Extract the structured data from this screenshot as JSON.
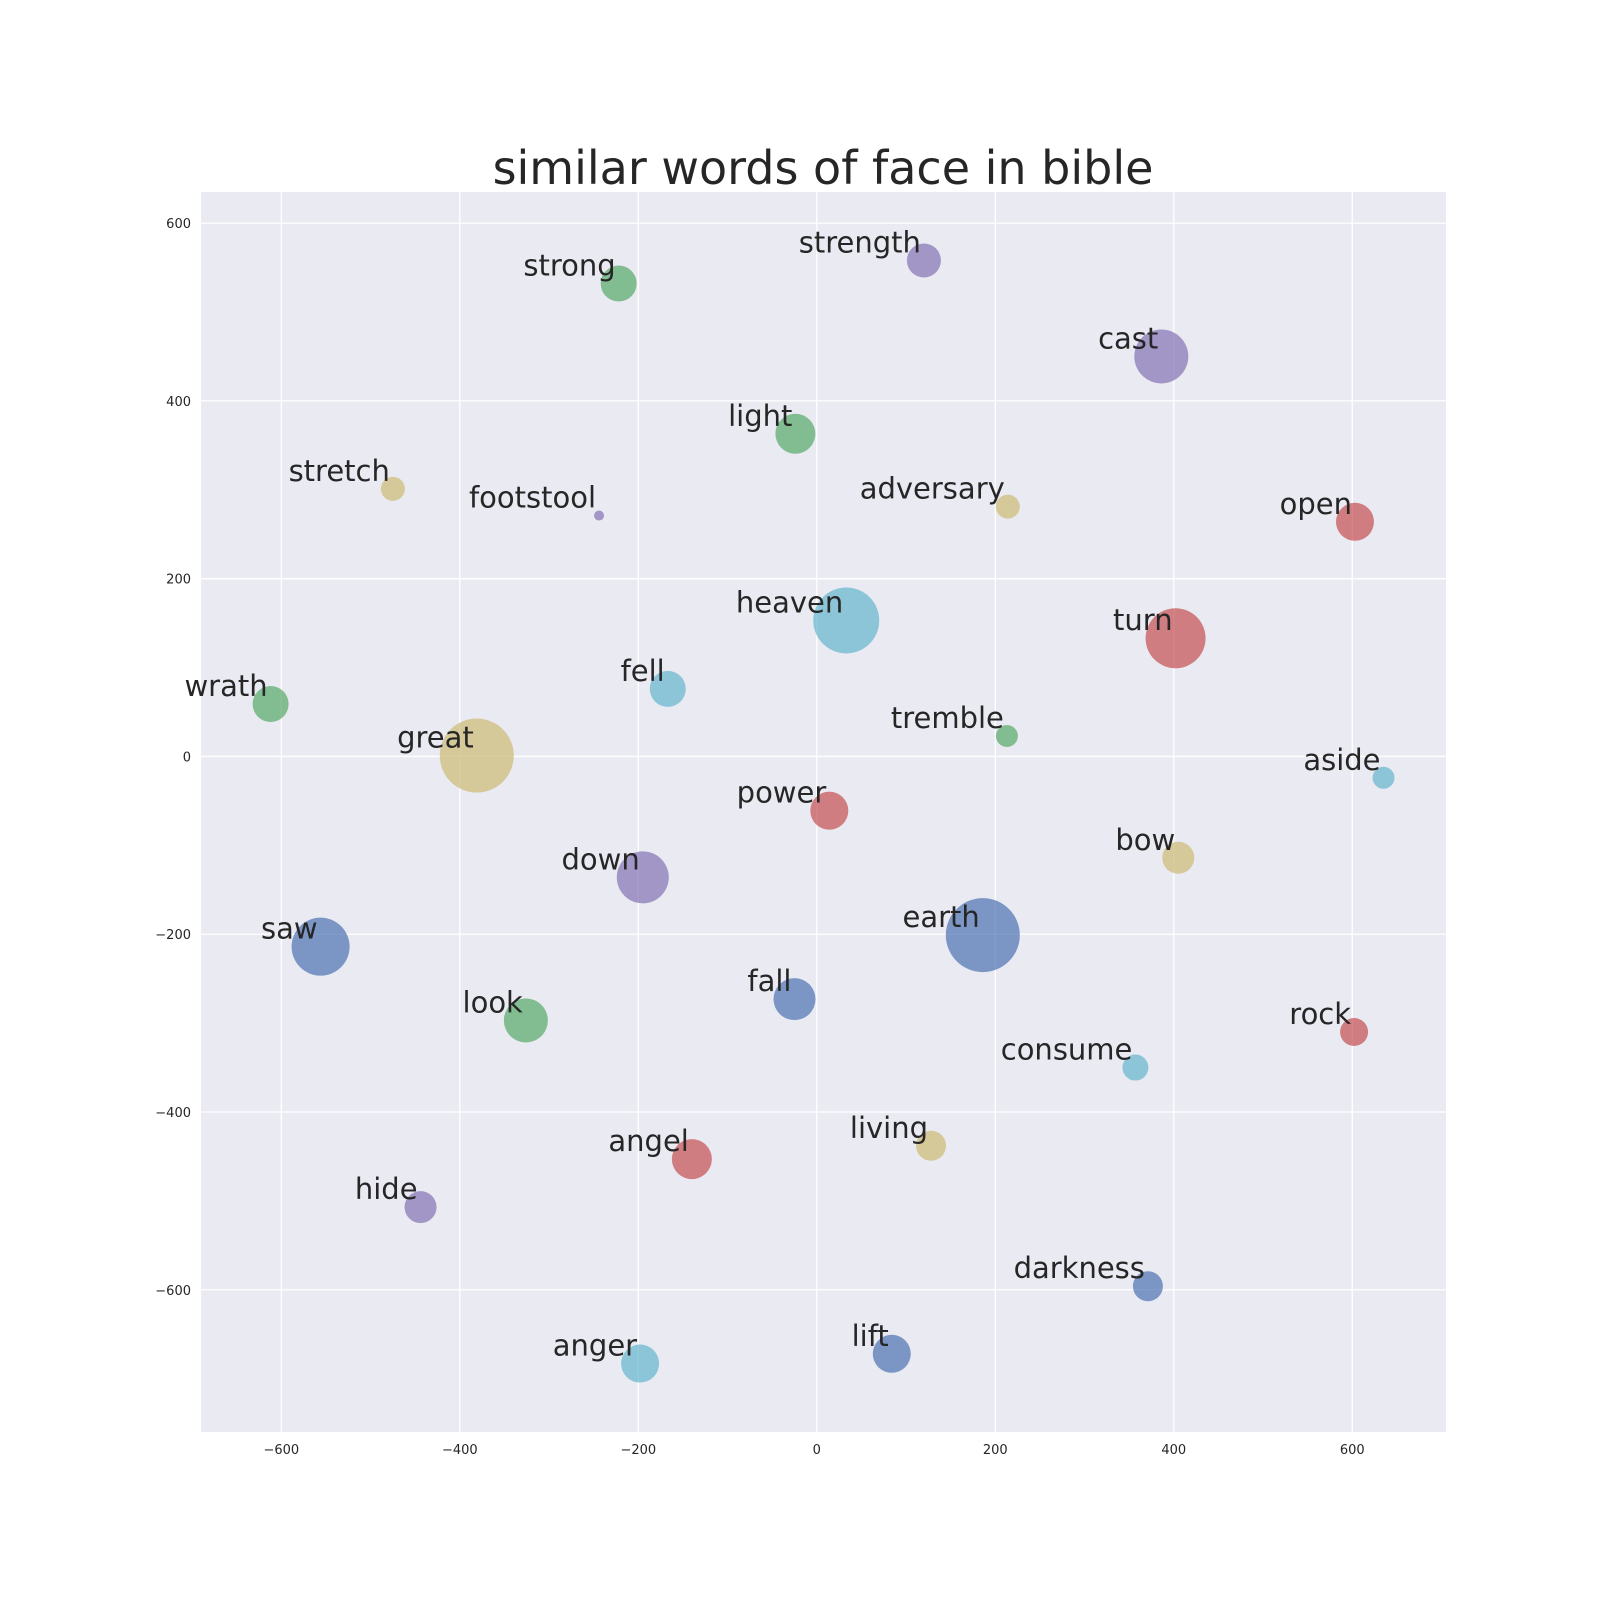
{
  "chart_data": {
    "type": "scatter",
    "title": "similar words of face in bible",
    "xlabel": "",
    "ylabel": "",
    "xlim": [
      -690,
      705
    ],
    "ylim": [
      -760,
      635
    ],
    "xticks": [
      -600,
      -400,
      -200,
      0,
      200,
      400,
      600
    ],
    "yticks": [
      600,
      400,
      200,
      0,
      -200,
      -400,
      -600
    ],
    "xtick_labels": [
      "−600",
      "−400",
      "−200",
      "0",
      "200",
      "400",
      "600"
    ],
    "ytick_labels": [
      "600",
      "400",
      "200",
      "0",
      "−200",
      "−400",
      "−600"
    ],
    "grid": true,
    "colors": {
      "blue": "#4C72B0",
      "green": "#55A868",
      "red": "#C44E52",
      "purple": "#8172B2",
      "yellow": "#CCB974",
      "cyan": "#64B5CD",
      "plot_background": "#EAEAF2",
      "grid": "#ffffff"
    },
    "points": [
      {
        "label": "strength",
        "x": 120,
        "y": 558,
        "size": 17,
        "color": "purple"
      },
      {
        "label": "strong",
        "x": -222,
        "y": 532,
        "size": 18,
        "color": "green"
      },
      {
        "label": "cast",
        "x": 386,
        "y": 450,
        "size": 27,
        "color": "purple"
      },
      {
        "label": "light",
        "x": -24,
        "y": 363,
        "size": 20,
        "color": "green"
      },
      {
        "label": "stretch",
        "x": -475,
        "y": 301,
        "size": 12,
        "color": "yellow"
      },
      {
        "label": "footstool",
        "x": -244,
        "y": 271,
        "size": 5,
        "color": "purple"
      },
      {
        "label": "adversary",
        "x": 214,
        "y": 281,
        "size": 12,
        "color": "yellow"
      },
      {
        "label": "open",
        "x": 603,
        "y": 264,
        "size": 19,
        "color": "red"
      },
      {
        "label": "heaven",
        "x": 33,
        "y": 153,
        "size": 33,
        "color": "cyan"
      },
      {
        "label": "turn",
        "x": 402,
        "y": 133,
        "size": 30,
        "color": "red"
      },
      {
        "label": "fell",
        "x": -167,
        "y": 76,
        "size": 18,
        "color": "cyan"
      },
      {
        "label": "wrath",
        "x": -612,
        "y": 59,
        "size": 18,
        "color": "green"
      },
      {
        "label": "tremble",
        "x": 213,
        "y": 23,
        "size": 11,
        "color": "green"
      },
      {
        "label": "great",
        "x": -381,
        "y": 1,
        "size": 37,
        "color": "yellow"
      },
      {
        "label": "aside",
        "x": 635,
        "y": -24,
        "size": 11,
        "color": "cyan"
      },
      {
        "label": "power",
        "x": 14,
        "y": -61,
        "size": 19,
        "color": "red"
      },
      {
        "label": "bow",
        "x": 405,
        "y": -114,
        "size": 16,
        "color": "yellow"
      },
      {
        "label": "down",
        "x": -195,
        "y": -136,
        "size": 26,
        "color": "purple"
      },
      {
        "label": "earth",
        "x": 186,
        "y": -201,
        "size": 37,
        "color": "blue"
      },
      {
        "label": "saw",
        "x": -556,
        "y": -214,
        "size": 29,
        "color": "blue"
      },
      {
        "label": "fall",
        "x": -25,
        "y": -273,
        "size": 21,
        "color": "blue"
      },
      {
        "label": "look",
        "x": -326,
        "y": -297,
        "size": 22,
        "color": "green"
      },
      {
        "label": "rock",
        "x": 602,
        "y": -310,
        "size": 14,
        "color": "red"
      },
      {
        "label": "consume",
        "x": 357,
        "y": -350,
        "size": 13,
        "color": "cyan"
      },
      {
        "label": "living",
        "x": 128,
        "y": -438,
        "size": 15,
        "color": "yellow"
      },
      {
        "label": "angel",
        "x": -140,
        "y": -453,
        "size": 20,
        "color": "red"
      },
      {
        "label": "hide",
        "x": -444,
        "y": -507,
        "size": 16,
        "color": "purple"
      },
      {
        "label": "darkness",
        "x": 371,
        "y": -596,
        "size": 15,
        "color": "blue"
      },
      {
        "label": "lift",
        "x": 84,
        "y": -672,
        "size": 19,
        "color": "blue"
      },
      {
        "label": "anger",
        "x": -198,
        "y": -683,
        "size": 19,
        "color": "cyan"
      }
    ]
  }
}
